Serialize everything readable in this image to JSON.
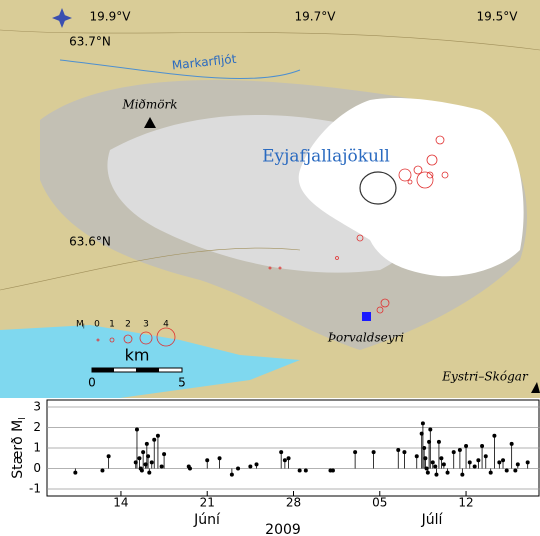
{
  "map": {
    "longitudes": [
      "19.9°V",
      "19.7°V",
      "19.5°V"
    ],
    "latitudes": [
      "63.7°N",
      "63.6°N"
    ],
    "places": {
      "river": "Markarfljót",
      "farm1": "Miðmörk",
      "glacier": "Eyjafjallajökull",
      "farm2": "Þorvaldseyri",
      "farm3": "Eystri–Skógar"
    },
    "legend": {
      "title": "M",
      "subscript": "l",
      "magnitudes": [
        "0",
        "1",
        "2",
        "3",
        "4"
      ]
    },
    "scale": {
      "unit": "km",
      "labels": [
        "0",
        "5"
      ]
    }
  },
  "chart_data": {
    "type": "stem",
    "color": "#000000",
    "grid": true,
    "ylabel": "Stærð M",
    "ylabel_sub": "l",
    "xlabel": "2009",
    "months": [
      "Júní",
      "Júlí"
    ],
    "x": [
      10.3,
      12.5,
      13,
      15.2,
      15.3,
      15.5,
      15.6,
      15.7,
      15.8,
      16,
      16.1,
      16.2,
      16.3,
      16.5,
      16.7,
      17,
      17.3,
      17.5,
      19.5,
      19.6,
      21,
      22,
      23,
      23.5,
      24.5,
      25,
      27,
      27.3,
      27.6,
      28.5,
      29,
      31,
      31.2,
      33,
      34.5,
      36.5,
      37,
      38,
      38.4,
      38.5,
      38.6,
      38.7,
      38.8,
      38.9,
      39,
      39.1,
      39.3,
      39.5,
      39.6,
      39.8,
      40,
      40.2,
      40.5,
      41,
      41.5,
      41.7,
      42,
      42.3,
      42.7,
      43,
      43.3,
      43.6,
      44,
      44.3,
      44.7,
      45,
      45.3,
      45.7,
      46,
      46.2,
      47
    ],
    "values": [
      -0.2,
      -0.1,
      0.6,
      0.3,
      1.9,
      0.5,
      0,
      -0.1,
      0.8,
      0.2,
      1.2,
      0.6,
      -0.2,
      0.3,
      1.4,
      1.6,
      0.1,
      0.7,
      0.1,
      0,
      0.4,
      0.5,
      -0.3,
      0,
      0.1,
      0.2,
      0.8,
      0.4,
      0.5,
      -0.1,
      -0.1,
      -0.1,
      -0.1,
      0.8,
      0.8,
      0.9,
      0.8,
      0.6,
      1.7,
      2.2,
      1.0,
      0.5,
      0,
      -0.2,
      1.3,
      1.9,
      0.3,
      0.1,
      -0.3,
      1.3,
      0.5,
      0.2,
      -0.2,
      0.8,
      0.9,
      -0.3,
      1.1,
      0.3,
      0.1,
      0.4,
      1.1,
      0.6,
      -0.2,
      1.6,
      0.3,
      0.4,
      -0.1,
      1.2,
      -0.1,
      0.2,
      0.3
    ],
    "xlim": [
      8,
      48
    ],
    "ylim": [
      -1,
      3
    ],
    "xticks": [
      14,
      21,
      28,
      {
        "value": 35,
        "label": "05"
      },
      {
        "value": 42,
        "label": "12"
      }
    ],
    "yticks": [
      -1,
      0,
      1,
      2,
      3
    ]
  }
}
